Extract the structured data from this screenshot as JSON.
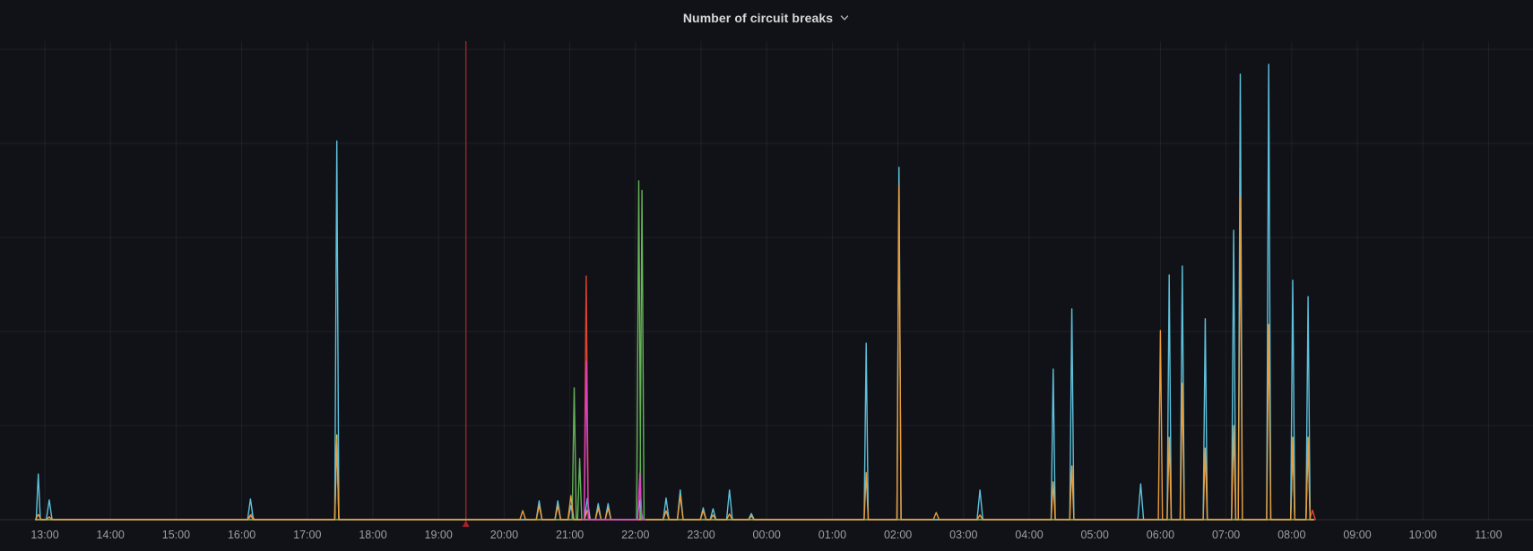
{
  "panel": {
    "title": "Number of circuit breaks",
    "title_icon": "chevron-down"
  },
  "colors": {
    "background": "#111217",
    "title_text": "#d8d9da",
    "tick_text": "#9d9fa6",
    "grid": "rgba(204,204,220,0.08)",
    "axis": "rgba(204,204,220,0.15)",
    "annotation_red": "#a82027"
  },
  "chart_data": {
    "type": "line",
    "title": "Number of circuit breaks",
    "xlabel": "",
    "ylabel": "",
    "legend": "none",
    "grid": true,
    "x_ticks": [
      "13:00",
      "14:00",
      "15:00",
      "16:00",
      "17:00",
      "18:00",
      "19:00",
      "20:00",
      "21:00",
      "22:00",
      "23:00",
      "00:00",
      "01:00",
      "02:00",
      "03:00",
      "04:00",
      "05:00",
      "06:00",
      "07:00",
      "08:00",
      "09:00",
      "10:00",
      "11:00"
    ],
    "x_range": [
      "12:19",
      "11:43"
    ],
    "ylim": [
      0,
      100
    ],
    "y_gridline_step": 20,
    "data_start": "12:53",
    "data_end": "08:20",
    "annotation": {
      "type": "vline",
      "time": "19:25",
      "color": "#a82027"
    },
    "series": [
      {
        "name": "yellow",
        "color": "#d6c84b",
        "points": [
          [
            "17:27",
            18.0
          ],
          [
            "08:01",
            17.5
          ],
          [
            "08:15",
            17.5
          ]
        ]
      },
      {
        "name": "red",
        "color": "#e2432f",
        "points": [
          [
            "16:09",
            1.2
          ],
          [
            "21:15",
            51.8
          ],
          [
            "08:19",
            2.0
          ]
        ]
      },
      {
        "name": "green",
        "color": "#65b257",
        "points": [
          [
            "21:04",
            28.0
          ],
          [
            "21:09",
            13.0
          ],
          [
            "22:03",
            72.0
          ],
          [
            "22:06",
            70.0
          ]
        ]
      },
      {
        "name": "cyan",
        "color": "#5ec1dc",
        "points": [
          [
            "12:54",
            9.7
          ],
          [
            "13:04",
            4.2
          ],
          [
            "16:08",
            4.4
          ],
          [
            "17:27",
            80.5
          ],
          [
            "20:32",
            4.0
          ],
          [
            "20:49",
            4.0
          ],
          [
            "21:01",
            3.0
          ],
          [
            "21:16",
            4.5
          ],
          [
            "21:26",
            3.4
          ],
          [
            "21:35",
            3.4
          ],
          [
            "22:04",
            4.0
          ],
          [
            "22:28",
            4.6
          ],
          [
            "22:41",
            6.3
          ],
          [
            "23:02",
            2.5
          ],
          [
            "23:11",
            2.3
          ],
          [
            "23:26",
            6.3
          ],
          [
            "23:46",
            1.3
          ],
          [
            "01:31",
            37.5
          ],
          [
            "02:01",
            74.9
          ],
          [
            "03:15",
            6.3
          ],
          [
            "04:22",
            32.0
          ],
          [
            "04:39",
            44.8
          ],
          [
            "05:42",
            7.6
          ],
          [
            "06:08",
            52.0
          ],
          [
            "06:20",
            53.9
          ],
          [
            "06:41",
            42.7
          ],
          [
            "07:07",
            61.5
          ],
          [
            "07:13",
            94.7
          ],
          [
            "07:39",
            96.8
          ],
          [
            "08:01",
            50.9
          ],
          [
            "08:15",
            47.4
          ]
        ]
      },
      {
        "name": "orange",
        "color": "#e89c3c",
        "points": [
          [
            "12:54",
            1.1
          ],
          [
            "13:04",
            0.6
          ],
          [
            "16:08",
            1.0
          ],
          [
            "17:27",
            17.1
          ],
          [
            "20:17",
            1.9
          ],
          [
            "20:32",
            3.0
          ],
          [
            "20:49",
            3.0
          ],
          [
            "21:01",
            5.1
          ],
          [
            "21:16",
            2.0
          ],
          [
            "21:26",
            2.5
          ],
          [
            "21:35",
            2.5
          ],
          [
            "22:28",
            1.9
          ],
          [
            "22:41",
            5.1
          ],
          [
            "23:02",
            1.9
          ],
          [
            "23:11",
            1.0
          ],
          [
            "23:26",
            1.2
          ],
          [
            "23:46",
            0.8
          ],
          [
            "01:31",
            10.0
          ],
          [
            "02:01",
            71.0
          ],
          [
            "02:35",
            1.5
          ],
          [
            "03:15",
            1.0
          ],
          [
            "04:22",
            8.0
          ],
          [
            "04:39",
            11.4
          ],
          [
            "06:00",
            40.2
          ],
          [
            "06:08",
            17.5
          ],
          [
            "06:20",
            29.0
          ],
          [
            "06:41",
            15.2
          ],
          [
            "07:07",
            20.0
          ],
          [
            "07:13",
            68.6
          ],
          [
            "07:39",
            41.5
          ],
          [
            "08:01",
            16.5
          ],
          [
            "08:15",
            17.0
          ]
        ]
      },
      {
        "name": "magenta",
        "color": "#da3fc4",
        "range": [
          "21:11",
          "22:09"
        ],
        "points": [
          [
            "21:15",
            33.7
          ],
          [
            "22:04",
            9.9
          ]
        ]
      }
    ]
  }
}
